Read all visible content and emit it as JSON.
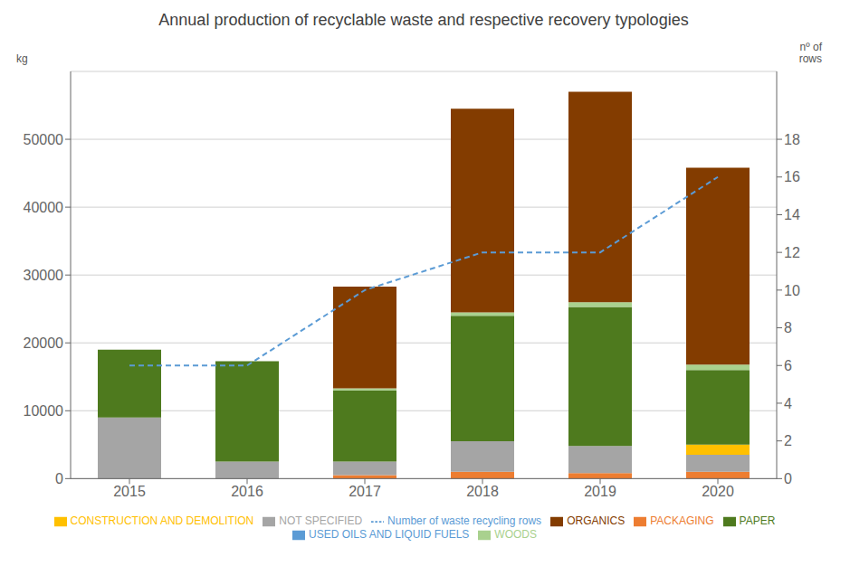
{
  "chart_data": {
    "type": "bar",
    "title": "Annual production of recyclable waste and respective recovery typologies",
    "y_label": "kg",
    "y2_label": "nº of\nrows",
    "categories": [
      "2015",
      "2016",
      "2017",
      "2018",
      "2019",
      "2020"
    ],
    "stacked": true,
    "grid": true,
    "legend": "bottom",
    "ylim": [
      0,
      60000
    ],
    "yticks": [
      0,
      10000,
      20000,
      30000,
      40000,
      50000
    ],
    "y2lim": [
      0,
      21.6
    ],
    "y2ticks": [
      0,
      2,
      4,
      6,
      8,
      10,
      12,
      14,
      16,
      18
    ],
    "series": [
      {
        "name": "USED OILS AND LIQUID FUELS",
        "color": "#5B9BD5",
        "values": [
          0,
          0,
          0,
          0,
          0,
          0
        ]
      },
      {
        "name": "PACKAGING",
        "color": "#ED7D31",
        "values": [
          0,
          0,
          500,
          1000,
          800,
          1000
        ]
      },
      {
        "name": "NOT SPECIFIED",
        "color": "#A5A5A5",
        "values": [
          9000,
          2500,
          2000,
          4500,
          4000,
          2500
        ]
      },
      {
        "name": "CONSTRUCTION AND DEMOLITION",
        "color": "#FFC000",
        "values": [
          0,
          0,
          0,
          0,
          0,
          1500
        ]
      },
      {
        "name": "PAPER",
        "color": "#4E7A1E",
        "values": [
          10000,
          14800,
          10500,
          18500,
          20500,
          11000
        ]
      },
      {
        "name": "WOODS",
        "color": "#A9D18E",
        "values": [
          0,
          0,
          300,
          500,
          700,
          800
        ]
      },
      {
        "name": "ORGANICS",
        "color": "#833C00",
        "values": [
          0,
          0,
          15000,
          30000,
          31000,
          29000
        ]
      },
      {
        "name": "Number of waste recycling rows",
        "type": "line",
        "line_style": "dashed",
        "color": "#5B9BD5",
        "axis": "y2",
        "values": [
          6,
          6,
          10,
          12,
          12,
          16
        ]
      }
    ]
  }
}
